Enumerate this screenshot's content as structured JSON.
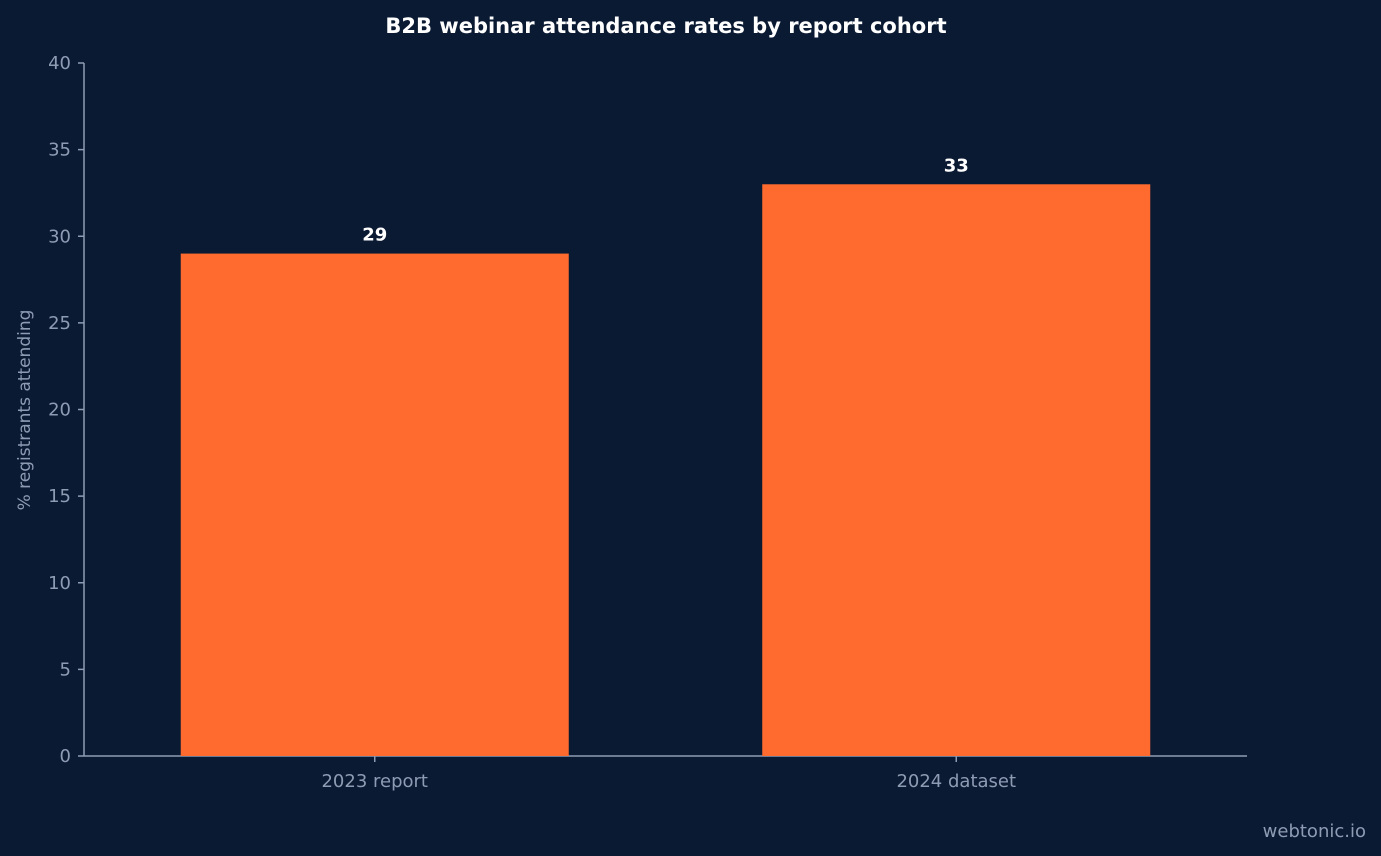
{
  "chart_data": {
    "type": "bar",
    "title": "B2B webinar attendance rates by report cohort",
    "xlabel": "",
    "ylabel": "% registrants attending",
    "categories": [
      "2023 report",
      "2024 dataset"
    ],
    "values": [
      29,
      33
    ],
    "data_labels": [
      "29",
      "33"
    ],
    "ylim": [
      0,
      40
    ],
    "yticks": [
      0,
      5,
      10,
      15,
      20,
      25,
      30,
      35,
      40
    ],
    "grid": false,
    "legend": "none",
    "bar_color": "#ff6b2e"
  },
  "watermark": "webtonic.io",
  "colors": {
    "background": "#0b1a33",
    "axis": "#8e9cb3",
    "text": "#ffffff"
  }
}
